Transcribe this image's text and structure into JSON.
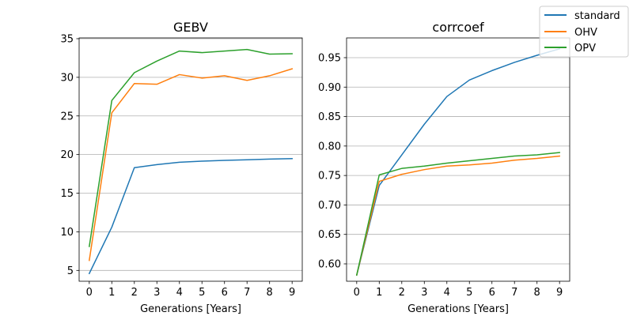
{
  "chart_data": [
    {
      "type": "line",
      "title": "GEBV",
      "xlabel": "Generations [Years]",
      "ylabel": "",
      "x": [
        0,
        1,
        2,
        3,
        4,
        5,
        6,
        7,
        8,
        9
      ],
      "xlim": [
        -0.45,
        9.45
      ],
      "ylim": [
        3.6,
        35.1
      ],
      "yticks": [
        5,
        10,
        15,
        20,
        25,
        30,
        35
      ],
      "ytick_labels": [
        "5",
        "10",
        "15",
        "20",
        "25",
        "30",
        "35"
      ],
      "grid": "y",
      "series": [
        {
          "name": "standard",
          "color": "#1f77b4",
          "values": [
            4.6,
            10.6,
            18.3,
            18.7,
            19.0,
            19.15,
            19.25,
            19.33,
            19.42,
            19.48
          ]
        },
        {
          "name": "OHV",
          "color": "#ff7f0e",
          "values": [
            6.3,
            25.4,
            29.2,
            29.1,
            30.35,
            29.9,
            30.2,
            29.6,
            30.2,
            31.1
          ]
        },
        {
          "name": "OPV",
          "color": "#2ca02c",
          "values": [
            8.1,
            27.0,
            30.6,
            32.1,
            33.4,
            33.2,
            33.4,
            33.6,
            33.0,
            33.05
          ]
        }
      ]
    },
    {
      "type": "line",
      "title": "corrcoef",
      "xlabel": "Generations [Years]",
      "ylabel": "",
      "x": [
        0,
        1,
        2,
        3,
        4,
        5,
        6,
        7,
        8,
        9
      ],
      "xlim": [
        -0.45,
        9.45
      ],
      "ylim": [
        0.5705,
        0.9835
      ],
      "yticks": [
        0.6,
        0.65,
        0.7,
        0.75,
        0.8,
        0.85,
        0.9,
        0.95
      ],
      "ytick_labels": [
        "0.60",
        "0.65",
        "0.70",
        "0.75",
        "0.80",
        "0.85",
        "0.90",
        "0.95"
      ],
      "grid": "y",
      "series": [
        {
          "name": "standard",
          "color": "#1f77b4",
          "values": [
            0.581,
            0.733,
            0.785,
            0.837,
            0.884,
            0.912,
            0.928,
            0.942,
            0.954,
            0.965
          ]
        },
        {
          "name": "OHV",
          "color": "#ff7f0e",
          "values": [
            0.581,
            0.74,
            0.752,
            0.76,
            0.766,
            0.768,
            0.771,
            0.776,
            0.779,
            0.783
          ]
        },
        {
          "name": "OPV",
          "color": "#2ca02c",
          "values": [
            0.581,
            0.751,
            0.762,
            0.766,
            0.771,
            0.775,
            0.779,
            0.783,
            0.785,
            0.789
          ]
        }
      ]
    }
  ],
  "legend": {
    "placement": "top-right",
    "entries": [
      {
        "label": "standard",
        "color": "#1f77b4"
      },
      {
        "label": "OHV",
        "color": "#ff7f0e"
      },
      {
        "label": "OPV",
        "color": "#2ca02c"
      }
    ]
  }
}
